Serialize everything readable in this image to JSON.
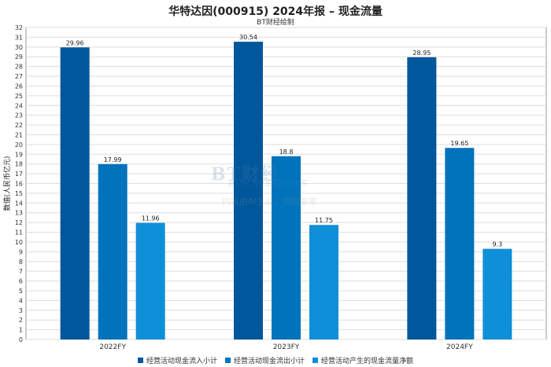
{
  "header": {
    "title": "华特达因(000915) 2024年报 – 现金流量",
    "subtitle": "BT财经绘制"
  },
  "watermark": {
    "logo": "BT财经",
    "sub": "BUSINESSTIMES",
    "note": "内容由AI生成，仅供参考"
  },
  "chart_data": {
    "type": "bar",
    "categories": [
      "2022FY",
      "2023FY",
      "2024FY"
    ],
    "series": [
      {
        "name": "经营活动现金流入小计",
        "values": [
          29.96,
          30.54,
          28.95
        ],
        "labels": [
          "29.96",
          "30.54",
          "28.95"
        ],
        "color": "#00579c"
      },
      {
        "name": "经营活动现金流出小计",
        "values": [
          17.99,
          18.8,
          19.65
        ],
        "labels": [
          "17.99",
          "18.8",
          "19.65"
        ],
        "color": "#0073bc"
      },
      {
        "name": "经营活动产生的现金流量净额",
        "values": [
          11.96,
          11.75,
          9.3
        ],
        "labels": [
          "11.96",
          "11.75",
          "9.3"
        ],
        "color": "#0f8fd8"
      }
    ],
    "ylabel": "数值(人民币亿元)",
    "ylim": [
      0,
      32
    ],
    "ytick_step": 1,
    "grid": true,
    "legend_position": "bottom"
  }
}
